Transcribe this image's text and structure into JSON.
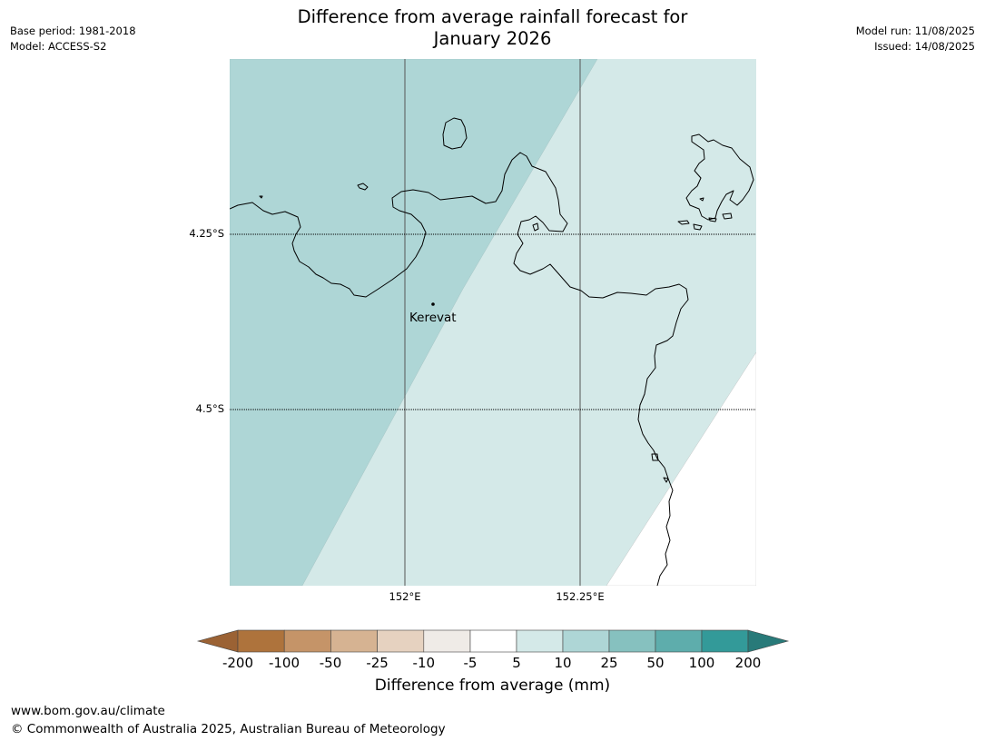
{
  "header": {
    "title_line1": "Difference from average rainfall forecast for",
    "title_line2": "January 2026",
    "base_period": "Base period: 1981-2018",
    "model": "Model: ACCESS-S2",
    "model_run": "Model run: 11/08/2025",
    "issued": "Issued: 14/08/2025"
  },
  "map": {
    "latitude_labels": [
      "4.25°S",
      "4.5°S"
    ],
    "longitude_labels": [
      "152°E",
      "152.25°E"
    ],
    "place_name": "Kerevat",
    "colors": {
      "zone_10_25": "#aed6d6",
      "zone_5_10": "#d4e9e8",
      "zone_minus5_5": "#ffffff",
      "coastline": "#000000",
      "gridline": "#555555"
    }
  },
  "colorbar": {
    "title": "Difference from average (mm)",
    "tick_labels": [
      "-200",
      "-100",
      "-50",
      "-25",
      "-10",
      "-5",
      "5",
      "10",
      "25",
      "50",
      "100",
      "200"
    ],
    "colors": [
      "#9b6234",
      "#ae733c",
      "#c59468",
      "#d6b392",
      "#e6d2c0",
      "#efebe7",
      "#ffffff",
      "#d4e9e8",
      "#aed6d6",
      "#86c1bf",
      "#5eadac",
      "#339a99",
      "#287a79"
    ]
  },
  "footer": {
    "url": "www.bom.gov.au/climate",
    "copyright": "© Commonwealth of Australia 2025, Australian Bureau of Meteorology"
  }
}
